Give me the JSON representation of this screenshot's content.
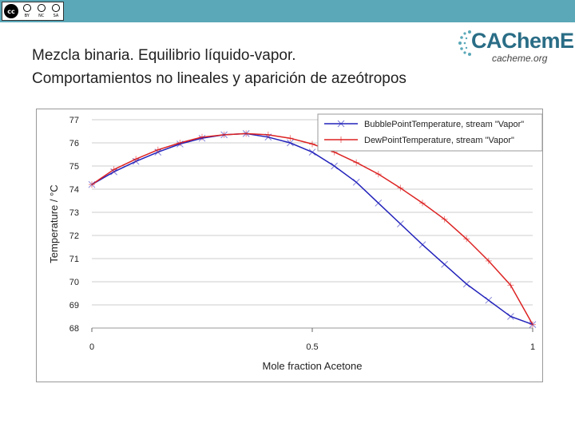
{
  "header": {
    "license_badge": {
      "logo": "cc",
      "tags": [
        "BY",
        "NC",
        "SA"
      ]
    },
    "title_line1": "Mezcla binaria. Equilibrio líquido-vapor.",
    "title_line2": "Comportamientos no lineales y aparición de azeótropos"
  },
  "brand": {
    "name": "CAChemE",
    "url": "cacheme.org"
  },
  "colors": {
    "topbar": "#5aa8b8",
    "bubble": "#2222bb",
    "dew": "#dd2222",
    "grid": "#cccccc"
  },
  "chart_data": {
    "type": "line",
    "xlabel": "Mole fraction Acetone",
    "ylabel": "Temperature / °C",
    "xlim": [
      0,
      1
    ],
    "ylim": [
      68,
      77
    ],
    "x_ticks": [
      "0",
      "0.5",
      "1"
    ],
    "y_ticks": [
      "68",
      "69",
      "70",
      "71",
      "72",
      "73",
      "74",
      "75",
      "76",
      "77"
    ],
    "grid": "horizontal",
    "legend": "top-right",
    "series": [
      {
        "name": "BubblePointTemperature, stream \"Vapor\"",
        "color": "#2222bb",
        "marker": "x",
        "x": [
          0,
          0.05,
          0.1,
          0.15,
          0.2,
          0.25,
          0.3,
          0.35,
          0.4,
          0.45,
          0.5,
          0.55,
          0.6,
          0.65,
          0.7,
          0.75,
          0.8,
          0.85,
          0.9,
          0.95,
          1
        ],
        "y": [
          74.2,
          74.75,
          75.2,
          75.6,
          75.95,
          76.2,
          76.35,
          76.4,
          76.25,
          76.0,
          75.6,
          75.0,
          74.3,
          73.4,
          72.5,
          71.6,
          70.75,
          69.9,
          69.2,
          68.5,
          68.15
        ]
      },
      {
        "name": "DewPointTemperature, stream \"Vapor\"",
        "color": "#dd2222",
        "marker": "+",
        "x": [
          0,
          0.05,
          0.1,
          0.15,
          0.2,
          0.25,
          0.3,
          0.35,
          0.4,
          0.45,
          0.5,
          0.55,
          0.6,
          0.65,
          0.7,
          0.75,
          0.8,
          0.85,
          0.9,
          0.95,
          1
        ],
        "y": [
          74.2,
          74.85,
          75.3,
          75.7,
          76.0,
          76.25,
          76.35,
          76.4,
          76.35,
          76.2,
          75.95,
          75.6,
          75.15,
          74.65,
          74.05,
          73.4,
          72.7,
          71.85,
          70.9,
          69.85,
          68.15
        ]
      }
    ]
  }
}
